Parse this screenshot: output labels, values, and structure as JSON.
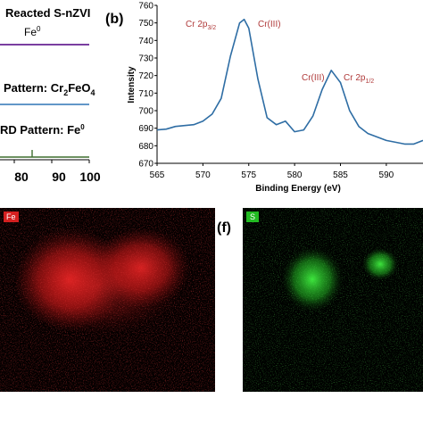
{
  "panel_a": {
    "series_labels": {
      "reacted": "Reacted S-nZVI",
      "fe0_sub": "Fe",
      "fe0_sup": "0",
      "pattern_cr": "Pattern: Cr",
      "pattern_cr_sub1": "2",
      "pattern_cr_mid": "FeO",
      "pattern_cr_sub2": "4",
      "xrd_fe": "RD Pattern: Fe",
      "xrd_fe_sup": "0"
    },
    "x_ticks": [
      "80",
      "90",
      "100"
    ],
    "colors": {
      "reacted": "#7a3ea0",
      "cr2feo4": "#2e75b6",
      "fe0": "#3f6f2f"
    }
  },
  "panel_b": {
    "panel_label": "(b)",
    "ylabel": "Intensity",
    "xlabel": "Binding Energy (eV)",
    "annotations": {
      "cr2p32_main": "Cr 2p",
      "cr2p32_sub": "3/2",
      "cr3_left": "Cr(III)",
      "cr3_right": "Cr(III)",
      "cr2p12_main": "Cr 2p",
      "cr2p12_sub": "1/2"
    },
    "annotation_color": "#b03a3a",
    "line_color": "#2e6da4"
  },
  "chart_data": {
    "type": "line",
    "title": "",
    "xlabel": "Binding Energy (eV)",
    "ylabel": "Intensity",
    "xlim": [
      565,
      594
    ],
    "ylim": [
      670,
      760
    ],
    "x_ticks": [
      565,
      570,
      575,
      580,
      585,
      590
    ],
    "y_ticks": [
      670,
      680,
      690,
      700,
      710,
      720,
      730,
      740,
      750,
      760
    ],
    "series": [
      {
        "x": [
          565,
          566,
          567,
          568,
          569,
          570,
          571,
          572,
          573,
          574,
          574.5,
          575,
          576,
          577,
          578,
          579,
          580,
          581,
          582,
          583,
          584,
          585,
          586,
          587,
          588,
          589,
          590,
          591,
          592,
          593,
          594
        ],
        "y": [
          689,
          689.5,
          691,
          691.5,
          692,
          694,
          698,
          707,
          731,
          750,
          752,
          747,
          718,
          696,
          692,
          694,
          688,
          689,
          697,
          712,
          723,
          716,
          700,
          691,
          687,
          685,
          683,
          682,
          681,
          681,
          683
        ]
      }
    ]
  },
  "panel_e": {
    "element_label": "Fe",
    "label_bg": "#d42020"
  },
  "panel_f": {
    "panel_label": "(f)",
    "element_label": "S",
    "label_bg": "#22bb22"
  }
}
